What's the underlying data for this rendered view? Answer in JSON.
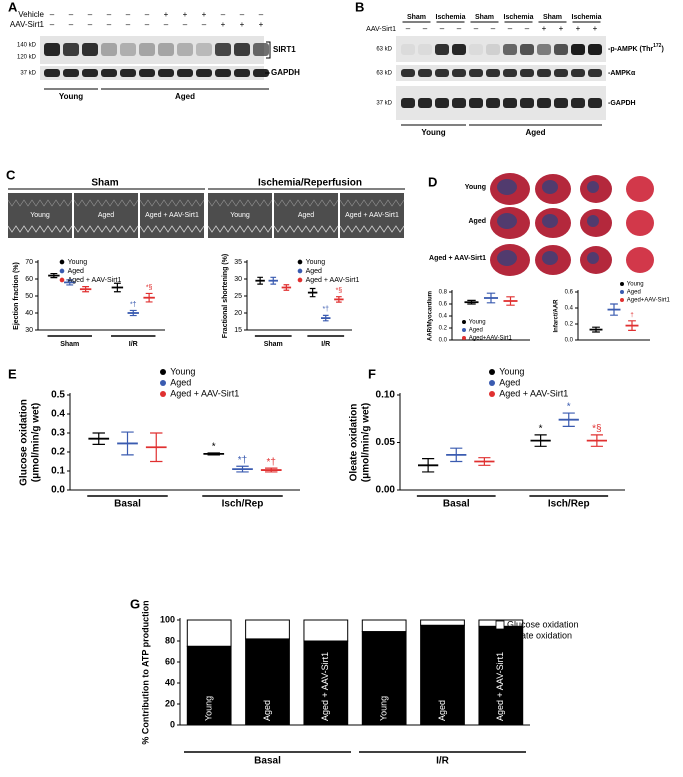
{
  "panel_a": {
    "label": "A",
    "rows": [
      {
        "name": "Vehicle",
        "signs": [
          "–",
          "–",
          "–",
          "–",
          "–",
          "–",
          "+",
          "+",
          "+",
          "–",
          "–",
          "–"
        ]
      },
      {
        "name": "AAV-Sirt1",
        "signs": [
          "–",
          "–",
          "–",
          "–",
          "–",
          "–",
          "–",
          "–",
          "–",
          "+",
          "+",
          "+"
        ]
      }
    ],
    "markers": [
      "140 kD",
      "120 kD",
      "37 kD"
    ],
    "targets": [
      "SIRT1",
      "GAPDH"
    ],
    "groups": [
      "Young",
      "Aged"
    ]
  },
  "panel_b": {
    "label": "B",
    "conditions": [
      "Sham",
      "Ischemia",
      "Sham",
      "Ischemia",
      "Sham",
      "Ischemia"
    ],
    "row": {
      "name": "AAV-Sirt1",
      "signs": [
        "–",
        "–",
        "–",
        "–",
        "–",
        "–",
        "–",
        "–",
        "+",
        "+",
        "+",
        "+"
      ]
    },
    "markers": [
      "63 kD",
      "63 kD",
      "37 kD"
    ],
    "targets": [
      {
        "text": "-p-AMPK (Thr",
        "sup": "172",
        "end": ")"
      },
      "-AMPKα",
      "-GAPDH"
    ],
    "groups": [
      "Young",
      "Aged"
    ]
  },
  "panel_c": {
    "label": "C",
    "conditions": [
      "Sham",
      "Ischemia/Reperfusion"
    ],
    "image_labels": [
      "Young",
      "Aged",
      "Aged + AAV-Sirt1",
      "Young",
      "Aged",
      "Aged + AAV-Sirt1"
    ]
  },
  "panel_d": {
    "label": "D",
    "image_labels": [
      "Young",
      "Aged",
      "Aged + AAV-Sirt1"
    ]
  },
  "panel_letters": [
    "E",
    "F",
    "G"
  ],
  "chart_data": [
    {
      "type": "dot",
      "ylabel": [
        "Ejection fraction (%)"
      ],
      "categories": [
        "Sham",
        "I/R"
      ],
      "ylim": [
        30,
        70
      ],
      "yticks": [
        30,
        40,
        50,
        60,
        70
      ],
      "series": [
        {
          "name": "Young",
          "color": "#000000",
          "values": [
            62,
            55
          ],
          "errors": [
            1.2,
            2.5
          ]
        },
        {
          "name": "Aged",
          "color": "#3a5bb0",
          "values": [
            58,
            40
          ],
          "errors": [
            1.5,
            1.5
          ],
          "annotations": [
            null,
            "*†"
          ]
        },
        {
          "name": "Aged + AAV-Sirt1",
          "color": "#e03030",
          "values": [
            54,
            49
          ],
          "errors": [
            1.5,
            2.5
          ],
          "annotations": [
            null,
            "*§"
          ]
        }
      ]
    },
    {
      "type": "dot",
      "ylabel": [
        "Fractional shortening (%)"
      ],
      "categories": [
        "Sham",
        "I/R"
      ],
      "ylim": [
        15,
        35
      ],
      "yticks": [
        15,
        20,
        25,
        30,
        35
      ],
      "series": [
        {
          "name": "Young",
          "color": "#000000",
          "values": [
            29.5,
            26
          ],
          "errors": [
            1,
            1.2
          ]
        },
        {
          "name": "Aged",
          "color": "#3a5bb0",
          "values": [
            29.5,
            18.5
          ],
          "errors": [
            1,
            0.8
          ],
          "annotations": [
            null,
            "*†"
          ]
        },
        {
          "name": "Aged + AAV-Sirt1",
          "color": "#e03030",
          "values": [
            27.5,
            24
          ],
          "errors": [
            0.8,
            0.8
          ],
          "annotations": [
            null,
            "*§"
          ]
        }
      ]
    },
    {
      "type": "dot",
      "ylabel": [
        "AAR/Myocardium"
      ],
      "categories": [
        null
      ],
      "ylim": [
        0,
        0.8
      ],
      "yticks": [
        {
          "value": 0,
          "label": "0.0"
        },
        0.2,
        0.4,
        0.6,
        0.8
      ],
      "series": [
        {
          "name": "Young",
          "color": "#000000",
          "values": [
            0.63
          ],
          "errors": [
            0.03
          ]
        },
        {
          "name": "Aged",
          "color": "#3a5bb0",
          "values": [
            0.7
          ],
          "errors": [
            0.08
          ]
        },
        {
          "name": "Aged+AAV-Sirt1",
          "color": "#e03030",
          "values": [
            0.65
          ],
          "errors": [
            0.07
          ]
        }
      ]
    },
    {
      "type": "dot",
      "ylabel": [
        "Infarct/AAR"
      ],
      "categories": [
        null
      ],
      "ylim": [
        0,
        0.6
      ],
      "yticks": [
        {
          "value": 0,
          "label": "0.0"
        },
        0.2,
        0.4,
        0.6
      ],
      "series": [
        {
          "name": "Young",
          "color": "#000000",
          "values": [
            0.13
          ],
          "errors": [
            0.03
          ]
        },
        {
          "name": "Aged",
          "color": "#3a5bb0",
          "values": [
            0.38
          ],
          "errors": [
            0.07
          ]
        },
        {
          "name": "Aged+AAV-Sirt1",
          "color": "#e03030",
          "values": [
            0.18
          ],
          "errors": [
            0.06
          ],
          "annotations": [
            "†"
          ]
        }
      ]
    },
    {
      "type": "dot",
      "ylabel": [
        "Glucose oxidation",
        "(μmol/min/g wet)"
      ],
      "categories": [
        "Basal",
        "Isch/Rep"
      ],
      "ylim": [
        0,
        0.5
      ],
      "yticks": [
        {
          "value": 0,
          "label": "0.0"
        },
        0.1,
        0.2,
        0.3,
        0.4,
        0.5
      ],
      "series": [
        {
          "name": "Young",
          "color": "#000000",
          "values": [
            0.27,
            0.19
          ],
          "errors": [
            0.03,
            0.005
          ],
          "annotations": [
            null,
            "*"
          ]
        },
        {
          "name": "Aged",
          "color": "#3a5bb0",
          "values": [
            0.245,
            0.11
          ],
          "errors": [
            0.06,
            0.015
          ],
          "annotations": [
            null,
            "*†"
          ]
        },
        {
          "name": "Aged + AAV-Sirt1",
          "color": "#e03030",
          "values": [
            0.225,
            0.105
          ],
          "errors": [
            0.075,
            0.01
          ],
          "annotations": [
            null,
            "*†"
          ]
        }
      ]
    },
    {
      "type": "dot",
      "ylabel": [
        "Oleate oxidation",
        "(μmol/min/g wet)"
      ],
      "categories": [
        "Basal",
        "Isch/Rep"
      ],
      "ylim": [
        0,
        0.1
      ],
      "yticks": [
        {
          "value": 0,
          "label": "0.00"
        },
        {
          "value": 0.05,
          "label": "0.05"
        },
        {
          "value": 0.1,
          "label": "0.10"
        }
      ],
      "series": [
        {
          "name": "Young",
          "color": "#000000",
          "values": [
            0.026,
            0.052
          ],
          "errors": [
            0.007,
            0.006
          ],
          "annotations": [
            null,
            "*"
          ]
        },
        {
          "name": "Aged",
          "color": "#3a5bb0",
          "values": [
            0.037,
            0.074
          ],
          "errors": [
            0.007,
            0.007
          ],
          "annotations": [
            null,
            "*"
          ]
        },
        {
          "name": "Aged + AAV-Sirt1",
          "color": "#e03030",
          "values": [
            0.03,
            0.052
          ],
          "errors": [
            0.004,
            0.006
          ],
          "annotations": [
            null,
            "*§"
          ]
        }
      ]
    },
    {
      "type": "stacked_bar",
      "ylabel": [
        "% Contribution to ATP production"
      ],
      "categories": [
        "Young",
        "Aged",
        "Aged + AAV-Sirt1",
        "Young",
        "Aged",
        "Aged + AAV-Sirt1"
      ],
      "groups": [
        "Basal",
        "I/R"
      ],
      "ylim": [
        0,
        100
      ],
      "yticks": [
        0,
        20,
        40,
        60,
        80,
        100
      ],
      "series": [
        {
          "name": "Glucose oxidation",
          "color": "#ffffff",
          "values": [
            25,
            18,
            20,
            11,
            5,
            6
          ]
        },
        {
          "name": "Oleate oxidation",
          "color": "#000000",
          "values": [
            75,
            82,
            80,
            89,
            95,
            94
          ]
        }
      ]
    }
  ]
}
